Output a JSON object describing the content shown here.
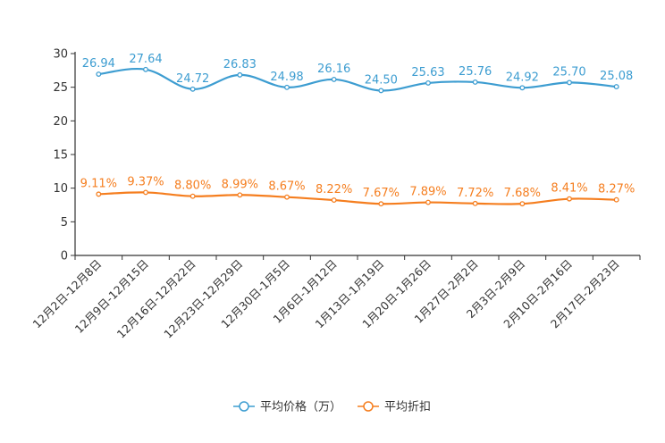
{
  "chart_data": {
    "type": "line",
    "categories": [
      "12月2日-12月8日",
      "12月9日-12月15日",
      "12月16日-12月22日",
      "12月23日-12月29日",
      "12月30日-1月5日",
      "1月6日-1月12日",
      "1月13日-1月19日",
      "1月20日-1月26日",
      "1月27日-2月2日",
      "2月3日-2月9日",
      "2月10日-2月16日",
      "2月17日-2月23日"
    ],
    "ylim": [
      0,
      30
    ],
    "yticks": [
      0,
      5,
      10,
      15,
      20,
      25,
      30
    ],
    "series": [
      {
        "name": "平均价格（万）",
        "color": "#3d9dd1",
        "values": [
          26.94,
          27.64,
          24.72,
          26.83,
          24.98,
          26.16,
          24.5,
          25.63,
          25.76,
          24.92,
          25.7,
          25.08
        ],
        "labels": [
          "26.94",
          "27.64",
          "24.72",
          "26.83",
          "24.98",
          "26.16",
          "24.50",
          "25.63",
          "25.76",
          "24.92",
          "25.70",
          "25.08"
        ]
      },
      {
        "name": "平均折扣",
        "color": "#f57e1f",
        "values": [
          9.11,
          9.37,
          8.8,
          8.99,
          8.67,
          8.22,
          7.67,
          7.89,
          7.72,
          7.68,
          8.41,
          8.27
        ],
        "labels": [
          "9.11%",
          "9.37%",
          "8.80%",
          "8.99%",
          "8.67%",
          "8.22%",
          "7.67%",
          "7.89%",
          "7.72%",
          "7.68%",
          "8.41%",
          "8.27%"
        ]
      }
    ],
    "legend_position": "bottom-center"
  }
}
